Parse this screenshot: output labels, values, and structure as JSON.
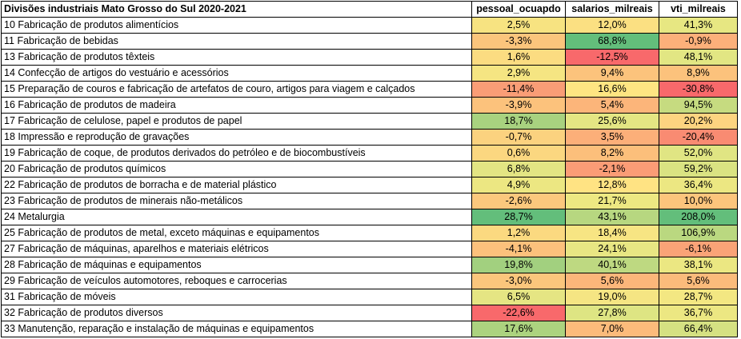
{
  "table": {
    "headers": [
      "Divisões industriais Mato Grosso do Sul 2020-2021",
      "pessoal_ocuapdo",
      "salarios_milreais",
      "vti_milreais"
    ],
    "rows": [
      {
        "label": "10 Fabricação de produtos alimentícios",
        "values": [
          "2,5%",
          "12,0%",
          "41,3%"
        ],
        "colors": [
          "#f7e381",
          "#fbe082",
          "#e7e782"
        ]
      },
      {
        "label": "11 Fabricação de bebidas",
        "values": [
          "-3,3%",
          "68,8%",
          "-0,9%"
        ],
        "colors": [
          "#fbc57c",
          "#63be7b",
          "#fcb07a"
        ]
      },
      {
        "label": "13 Fabricação de produtos têxteis",
        "values": [
          "1,6%",
          "-12,5%",
          "48,1%"
        ],
        "colors": [
          "#fbdc81",
          "#f8696b",
          "#e2e683"
        ]
      },
      {
        "label": "14 Confecção de artigos do vestuário e acessórios",
        "values": [
          "2,9%",
          "9,4%",
          "8,9%"
        ],
        "colors": [
          "#f5e582",
          "#fcc37c",
          "#fcc27c"
        ]
      },
      {
        "label": "15 Preparação de couros e fabricação de artefatos de couro, artigos para viagem e calçados",
        "values": [
          "-11,4%",
          "16,6%",
          "-30,8%"
        ],
        "colors": [
          "#f99d76",
          "#fee582",
          "#f8696b"
        ]
      },
      {
        "label": "16 Fabricação de produtos de madeira",
        "values": [
          "-3,9%",
          "5,4%",
          "94,5%"
        ],
        "colors": [
          "#fcc27c",
          "#fcb57a",
          "#c6db80"
        ]
      },
      {
        "label": "17 Fabricação de celulose, papel e produtos de papel",
        "values": [
          "18,7%",
          "25,6%",
          "20,2%"
        ],
        "colors": [
          "#a8d27f",
          "#e4e683",
          "#fdd480"
        ]
      },
      {
        "label": "18 Impressão e reprodução de gravações",
        "values": [
          "-0,7%",
          "3,5%",
          "-20,4%"
        ],
        "colors": [
          "#fbd27f",
          "#fcaf79",
          "#f98b72"
        ]
      },
      {
        "label": "19 Fabricação de coque, de produtos derivados do petróleo e de biocombustíveis",
        "values": [
          "0,6%",
          "8,2%",
          "52,0%"
        ],
        "colors": [
          "#fbd780",
          "#fcbf7b",
          "#e0e583"
        ]
      },
      {
        "label": "20 Fabricação de produtos químicos",
        "values": [
          "6,8%",
          "-2,1%",
          "59,2%"
        ],
        "colors": [
          "#e3e583",
          "#fb9c76",
          "#dae382"
        ]
      },
      {
        "label": "22 Fabricação de produtos de borracha e de material plástico",
        "values": [
          "4,9%",
          "12,8%",
          "36,4%"
        ],
        "colors": [
          "#ece782",
          "#ffe383",
          "#ece782"
        ]
      },
      {
        "label": "23 Fabricação de produtos de minerais não-metálicos",
        "values": [
          "-2,6%",
          "21,7%",
          "10,0%"
        ],
        "colors": [
          "#fbc87d",
          "#ede882",
          "#fcc57c"
        ]
      },
      {
        "label": "24 Metalurgia",
        "values": [
          "28,7%",
          "43,1%",
          "208,0%"
        ],
        "colors": [
          "#63be7b",
          "#b7d780",
          "#63be7b"
        ]
      },
      {
        "label": "25 Fabricação de produtos de metal, exceto máquinas e equipamentos",
        "values": [
          "1,2%",
          "18,4%",
          "106,9%"
        ],
        "colors": [
          "#fbd980",
          "#f7e583",
          "#bad880"
        ]
      },
      {
        "label": "27 Fabricação de máquinas, aparelhos e materiais elétricos",
        "values": [
          "-4,1%",
          "24,1%",
          "-6,1%"
        ],
        "colors": [
          "#fcc17c",
          "#e8e683",
          "#faa377"
        ]
      },
      {
        "label": "28 Fabricação de máquinas e equipamentos",
        "values": [
          "19,8%",
          "40,1%",
          "38,1%"
        ],
        "colors": [
          "#a2d07f",
          "#bed981",
          "#ebe782"
        ]
      },
      {
        "label": "29 Fabricação de veículos automotores, reboques e carrocerias",
        "values": [
          "-3,0%",
          "5,6%",
          "5,6%"
        ],
        "colors": [
          "#fbc67c",
          "#fcb67a",
          "#fbbb7b"
        ]
      },
      {
        "label": "31 Fabricação de móveis",
        "values": [
          "6,5%",
          "19,0%",
          "28,7%"
        ],
        "colors": [
          "#e5e583",
          "#f5e583",
          "#f3e782"
        ]
      },
      {
        "label": "32 Fabricação de produtos diversos",
        "values": [
          "-22,6%",
          "27,8%",
          "36,7%"
        ],
        "colors": [
          "#f8696b",
          "#dee583",
          "#ece782"
        ]
      },
      {
        "label": "33 Manutenção, reparação e instalação de máquinas e equipamentos",
        "values": [
          "17,6%",
          "7,0%",
          "66,4%"
        ],
        "colors": [
          "#acd37f",
          "#fcbb7b",
          "#d5e182"
        ]
      }
    ]
  }
}
